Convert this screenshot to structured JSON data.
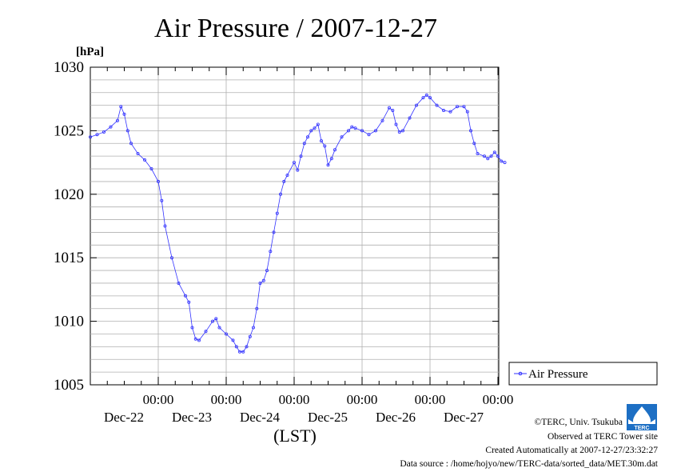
{
  "chart_data": {
    "type": "line",
    "title": "Air Pressure / 2007-12-27",
    "unit_label": "[hPa]",
    "xlabel": "(LST)",
    "ylabel": "",
    "ylim": [
      1005,
      1030
    ],
    "y_ticks": [
      "1005",
      "1010",
      "1015",
      "1020",
      "1025",
      "1030"
    ],
    "x_day_ticks": [
      {
        "time": "00:00",
        "date": "Dec-22"
      },
      {
        "time": "00:00",
        "date": "Dec-23"
      },
      {
        "time": "00:00",
        "date": "Dec-24"
      },
      {
        "time": "00:00",
        "date": "Dec-25"
      },
      {
        "time": "00:00",
        "date": "Dec-26"
      },
      {
        "time": "00:00",
        "date": "Dec-27"
      }
    ],
    "x_range_days": [
      0,
      6
    ],
    "grid": true,
    "legend_position": "right",
    "series": [
      {
        "name": "Air Pressure",
        "color": "#3333ff",
        "marker": "circle",
        "points": [
          [
            0.0,
            1024.5
          ],
          [
            0.1,
            1024.7
          ],
          [
            0.2,
            1024.9
          ],
          [
            0.3,
            1025.3
          ],
          [
            0.4,
            1025.8
          ],
          [
            0.45,
            1026.9
          ],
          [
            0.5,
            1026.3
          ],
          [
            0.55,
            1025.0
          ],
          [
            0.6,
            1024.0
          ],
          [
            0.7,
            1023.2
          ],
          [
            0.8,
            1022.7
          ],
          [
            0.9,
            1022.0
          ],
          [
            1.0,
            1021.0
          ],
          [
            1.05,
            1019.5
          ],
          [
            1.1,
            1017.5
          ],
          [
            1.2,
            1015.0
          ],
          [
            1.3,
            1013.0
          ],
          [
            1.4,
            1012.0
          ],
          [
            1.45,
            1011.5
          ],
          [
            1.5,
            1009.5
          ],
          [
            1.55,
            1008.6
          ],
          [
            1.6,
            1008.5
          ],
          [
            1.7,
            1009.2
          ],
          [
            1.8,
            1010.0
          ],
          [
            1.85,
            1010.2
          ],
          [
            1.9,
            1009.5
          ],
          [
            2.0,
            1009.0
          ],
          [
            2.1,
            1008.5
          ],
          [
            2.15,
            1008.0
          ],
          [
            2.2,
            1007.6
          ],
          [
            2.25,
            1007.6
          ],
          [
            2.3,
            1008.0
          ],
          [
            2.35,
            1008.8
          ],
          [
            2.4,
            1009.5
          ],
          [
            2.45,
            1011.0
          ],
          [
            2.5,
            1013.0
          ],
          [
            2.55,
            1013.2
          ],
          [
            2.6,
            1014.0
          ],
          [
            2.65,
            1015.5
          ],
          [
            2.7,
            1017.0
          ],
          [
            2.75,
            1018.5
          ],
          [
            2.8,
            1020.0
          ],
          [
            2.85,
            1021.0
          ],
          [
            2.9,
            1021.5
          ],
          [
            3.0,
            1022.5
          ],
          [
            3.05,
            1021.9
          ],
          [
            3.1,
            1023.0
          ],
          [
            3.15,
            1024.0
          ],
          [
            3.2,
            1024.5
          ],
          [
            3.25,
            1025.0
          ],
          [
            3.3,
            1025.2
          ],
          [
            3.35,
            1025.5
          ],
          [
            3.4,
            1024.2
          ],
          [
            3.45,
            1023.8
          ],
          [
            3.5,
            1022.3
          ],
          [
            3.55,
            1022.8
          ],
          [
            3.6,
            1023.5
          ],
          [
            3.7,
            1024.5
          ],
          [
            3.8,
            1025.0
          ],
          [
            3.85,
            1025.3
          ],
          [
            3.9,
            1025.2
          ],
          [
            4.0,
            1025.0
          ],
          [
            4.1,
            1024.7
          ],
          [
            4.2,
            1025.0
          ],
          [
            4.3,
            1025.8
          ],
          [
            4.4,
            1026.8
          ],
          [
            4.45,
            1026.6
          ],
          [
            4.5,
            1025.5
          ],
          [
            4.55,
            1024.9
          ],
          [
            4.6,
            1025.0
          ],
          [
            4.7,
            1026.0
          ],
          [
            4.8,
            1027.0
          ],
          [
            4.9,
            1027.6
          ],
          [
            4.95,
            1027.8
          ],
          [
            5.0,
            1027.6
          ],
          [
            5.1,
            1027.0
          ],
          [
            5.2,
            1026.6
          ],
          [
            5.3,
            1026.5
          ],
          [
            5.4,
            1026.9
          ],
          [
            5.5,
            1026.9
          ],
          [
            5.55,
            1026.5
          ],
          [
            5.6,
            1025.0
          ],
          [
            5.65,
            1024.0
          ],
          [
            5.7,
            1023.2
          ],
          [
            5.8,
            1023.0
          ],
          [
            5.85,
            1022.8
          ],
          [
            5.9,
            1023.0
          ],
          [
            5.95,
            1023.3
          ],
          [
            6.0,
            1023.0
          ],
          [
            6.05,
            1022.6
          ],
          [
            6.1,
            1022.5
          ]
        ]
      }
    ],
    "credits": [
      "©TERC, Univ. Tsukuba",
      "Observed at TERC Tower site",
      "Created Automatically at 2007-12-27/23:32:27",
      "Data source : /home/hojyo/new/TERC-data/sorted_data/MET.30m.dat"
    ],
    "logo_text": "TERC"
  }
}
